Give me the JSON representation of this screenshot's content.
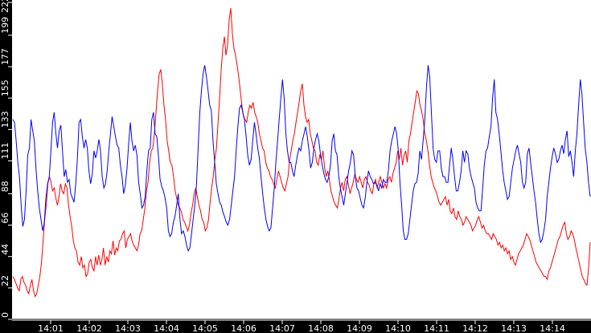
{
  "chart_data": {
    "type": "line",
    "title": "",
    "xlabel": "",
    "ylabel": "",
    "ylim": [
      0,
      222
    ],
    "y_ticks": [
      "0",
      "22",
      "44",
      "66",
      "88",
      "111",
      "133",
      "155",
      "177",
      "199",
      "222"
    ],
    "x_ticks": [
      "14:01",
      "14:02",
      "14:03",
      "14:04",
      "14:05",
      "14:06",
      "14:07",
      "14:08",
      "14:09",
      "14:10",
      "14:11",
      "14:12",
      "14:13",
      "14:14"
    ],
    "x_range": [
      "~14:00",
      "~14:15"
    ],
    "grid": false,
    "legend": null,
    "colors": {
      "background": "#000000",
      "plot_background": "#ffffff",
      "axis": "#000000",
      "series_blue": "#0000ff",
      "series_red": "#ff0000"
    },
    "series": [
      {
        "name": "blue",
        "color": "#0000ff",
        "values": [
          140,
          138,
          125,
          110,
          100,
          80,
          65,
          70,
          90,
          115,
          120,
          140,
          132,
          125,
          105,
          90,
          78,
          70,
          62,
          68,
          85,
          95,
          100,
          118,
          138,
          145,
          130,
          120,
          132,
          136,
          118,
          100,
          105,
          96,
          98,
          88,
          85,
          82,
          95,
          112,
          138,
          140,
          128,
          120,
          126,
          120,
          104,
          95,
          102,
          118,
          113,
          118,
          126,
          118,
          100,
          92,
          95,
          104,
          118,
          130,
          142,
          135,
          128,
          122,
          120,
          108,
          100,
          88,
          94,
          106,
          123,
          138,
          125,
          118,
          122,
          115,
          96,
          88,
          78,
          80,
          86,
          104,
          118,
          120,
          140,
          145,
          130,
          128,
          115,
          98,
          93,
          90,
          85,
          78,
          62,
          58,
          60,
          68,
          72,
          80,
          88,
          70,
          60,
          62,
          58,
          52,
          48,
          50,
          60,
          70,
          80,
          95,
          120,
          145,
          160,
          172,
          178,
          170,
          160,
          150,
          146,
          125,
          110,
          95,
          88,
          82,
          80,
          75,
          72,
          68,
          66,
          70,
          80,
          90,
          100,
          118,
          135,
          148,
          150,
          145,
          140,
          128,
          115,
          108,
          112,
          125,
          138,
          130,
          120,
          113,
          100,
          88,
          78,
          70,
          65,
          62,
          64,
          78,
          92,
          110,
          125,
          140,
          155,
          168,
          155,
          130,
          118,
          110,
          110,
          104,
          100,
          108,
          115,
          120,
          118,
          125,
          130,
          135,
          128,
          118,
          106,
          110,
          120,
          126,
          130,
          125,
          115,
          108,
          102,
          98,
          96,
          100,
          108,
          125,
          130,
          118,
          115,
          100,
          92,
          86,
          80,
          88,
          96,
          104,
          110,
          118,
          115,
          100,
          92,
          90,
          85,
          80,
          78,
          85,
          96,
          104,
          100,
          98,
          95,
          96,
          94,
          90,
          95,
          92,
          98,
          96,
          96,
          104,
          118,
          125,
          130,
          135,
          130,
          118,
          96,
          80,
          62,
          56,
          56,
          60,
          70,
          80,
          90,
          95,
          96,
          102,
          118,
          112,
          125,
          140,
          162,
          178,
          170,
          145,
          120,
          112,
          110,
          118,
          118,
          106,
          100,
          100,
          96,
          96,
          108,
          120,
          112,
          100,
          90,
          90,
          96,
          104,
          118,
          110,
          118,
          116,
          106,
          100,
          96,
          92,
          82,
          78,
          76,
          76,
          92,
          108,
          118,
          120,
          128,
          135,
          155,
          168,
          145,
          140,
          130,
          118,
          105,
          96,
          90,
          84,
          86,
          96,
          106,
          112,
          118,
          122,
          116,
          110,
          96,
          92,
          96,
          116,
          120,
          110,
          100,
          90,
          82,
          70,
          60,
          54,
          56,
          62,
          70,
          86,
          96,
          106,
          114,
          120,
          116,
          110,
          112,
          118,
          122,
          116,
          126,
          132,
          114,
          118,
          110,
          100,
          118,
          130,
          150,
          168,
          158,
          138,
          120,
          110,
          96,
          86
        ]
      },
      {
        "name": "red",
        "color": "#ff0000",
        "values": [
          30,
          28,
          25,
          22,
          20,
          28,
          30,
          26,
          24,
          20,
          18,
          24,
          28,
          20,
          16,
          18,
          24,
          30,
          40,
          55,
          70,
          80,
          95,
          100,
          96,
          90,
          92,
          85,
          80,
          86,
          95,
          90,
          88,
          95,
          92,
          80,
          72,
          65,
          55,
          50,
          48,
          40,
          38,
          44,
          36,
          38,
          30,
          32,
          40,
          42,
          36,
          34,
          44,
          38,
          45,
          38,
          42,
          50,
          38,
          44,
          40,
          48,
          46,
          55,
          45,
          50,
          48,
          55,
          56,
          60,
          62,
          50,
          56,
          58,
          60,
          55,
          52,
          50,
          48,
          52,
          60,
          62,
          70,
          78,
          90,
          96,
          110,
          118,
          120,
          130,
          145,
          160,
          172,
          175,
          165,
          150,
          140,
          125,
          118,
          110,
          108,
          100,
          90,
          85,
          80,
          78,
          75,
          70,
          68,
          65,
          62,
          66,
          74,
          80,
          88,
          92,
          86,
          80,
          76,
          70,
          68,
          62,
          64,
          70,
          82,
          92,
          100,
          112,
          120,
          138,
          155,
          175,
          190,
          198,
          185,
          192,
          210,
          218,
          200,
          190,
          185,
          178,
          170,
          160,
          150,
          142,
          140,
          138,
          145,
          150,
          148,
          152,
          145,
          142,
          138,
          130,
          125,
          120,
          118,
          110,
          106,
          104,
          100,
          98,
          95,
          92,
          98,
          104,
          100,
          96,
          92,
          90,
          95,
          100,
          112,
          118,
          125,
          130,
          138,
          145,
          152,
          160,
          165,
          150,
          142,
          138,
          140,
          130,
          125,
          120,
          118,
          110,
          108,
          115,
          112,
          118,
          106,
          100,
          104,
          98,
          90,
          86,
          82,
          80,
          78,
          84,
          92,
          96,
          90,
          98,
          100,
          94,
          88,
          92,
          96,
          102,
          98,
          96,
          100,
          96,
          92,
          98,
          100,
          96,
          94,
          90,
          88,
          95,
          98,
          92,
          96,
          100,
          96,
          92,
          95,
          92,
          98,
          100,
          96,
          102,
          106,
          110,
          118,
          112,
          120,
          108,
          115,
          118,
          110,
          125,
          130,
          138,
          145,
          152,
          160,
          158,
          150,
          146,
          140,
          130,
          125,
          118,
          108,
          100,
          96,
          92,
          90,
          86,
          82,
          80,
          82,
          84,
          86,
          80,
          84,
          76,
          74,
          78,
          72,
          70,
          76,
          72,
          70,
          66,
          68,
          72,
          70,
          68,
          66,
          62,
          64,
          66,
          70,
          72,
          68,
          64,
          66,
          62,
          60,
          60,
          58,
          56,
          60,
          58,
          56,
          52,
          54,
          50,
          52,
          48,
          50,
          46,
          48,
          42,
          44,
          40,
          38,
          42,
          46,
          48,
          50,
          52,
          56,
          60,
          58,
          56,
          52,
          48,
          44,
          40,
          38,
          36,
          34,
          32,
          30,
          30,
          28,
          34,
          36,
          40,
          44,
          48,
          52,
          56,
          58,
          62,
          66,
          68,
          60,
          56,
          58,
          62,
          60,
          56,
          50,
          45,
          40,
          35,
          30,
          28,
          25,
          24,
          36,
          54
        ]
      }
    ]
  }
}
